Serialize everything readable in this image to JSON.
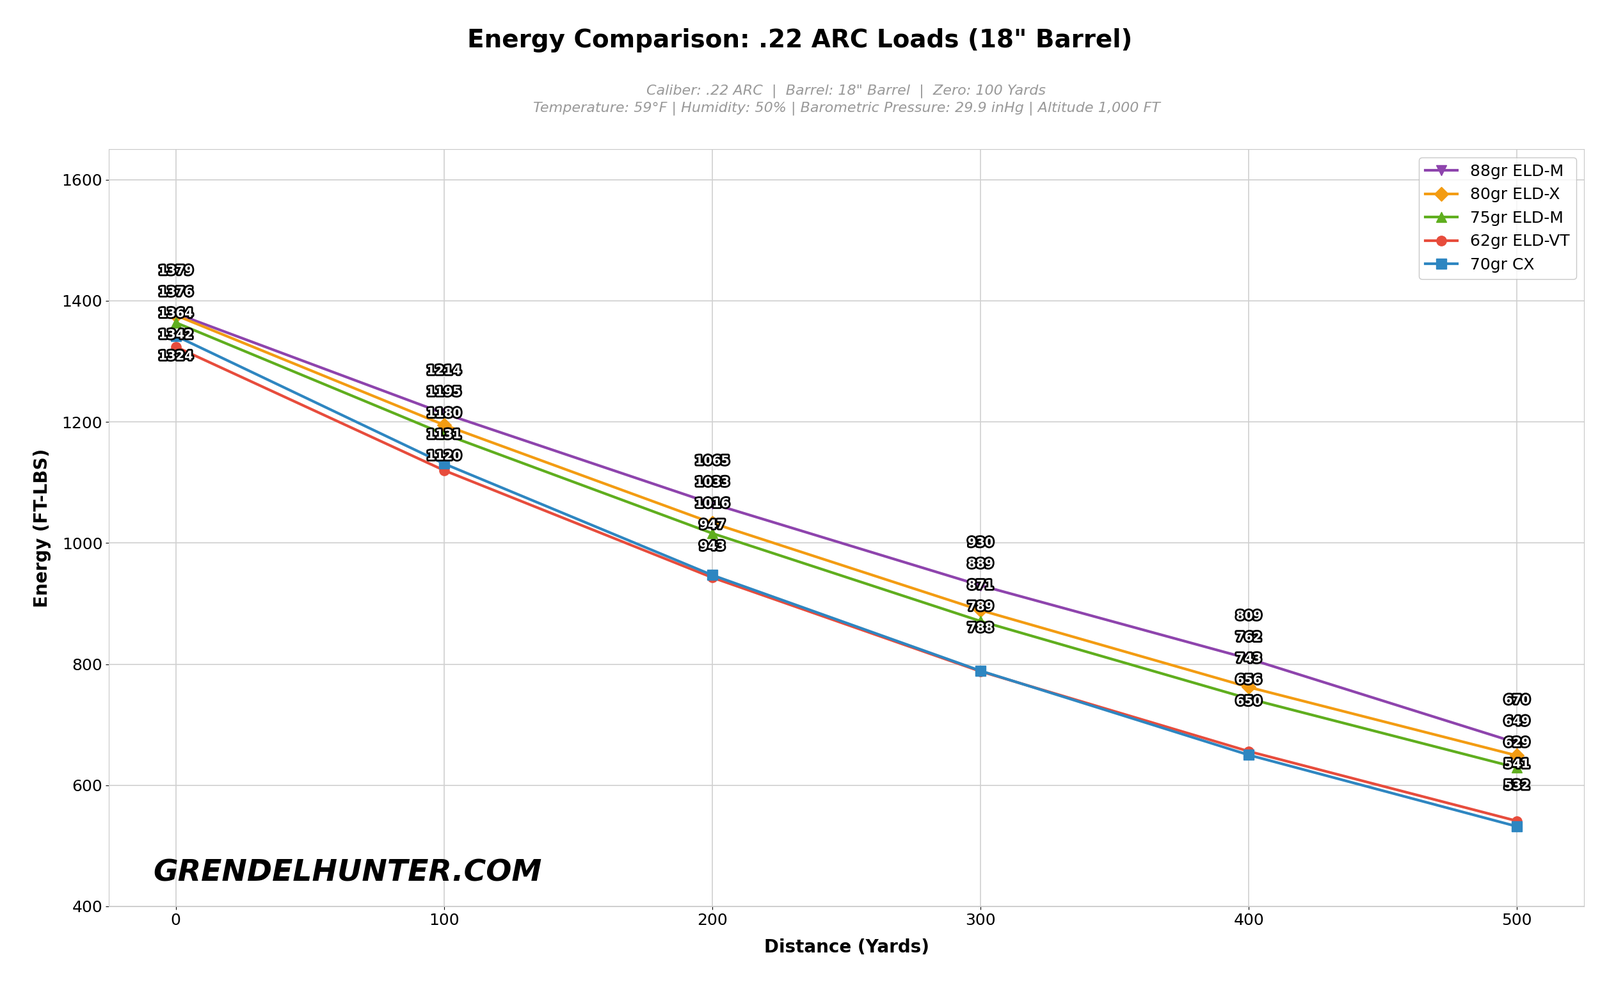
{
  "chart_data": {
    "type": "line",
    "title": "Energy Comparison: .22 ARC Loads (18\" Barrel)",
    "subtitle": [
      "Caliber: .22 ARC  |  Barrel: 18\" Barrel  |  Zero: 100 Yards",
      "Temperature: 59°F | Humidity: 50% | Barometric Pressure: 29.9 inHg | Altitude 1,000 FT"
    ],
    "watermark": "GRENDELHUNTER.COM",
    "x_label": "Distance (Yards)",
    "y_label": "Energy (FT-LBS)",
    "x": [
      0,
      100,
      200,
      300,
      400,
      500
    ],
    "series": [
      {
        "name": "88gr ELD-M",
        "color": "#8e44ad",
        "marker": "triangle_down",
        "values": [
          1379,
          1214,
          1065,
          930,
          809,
          670
        ]
      },
      {
        "name": "80gr ELD-X",
        "color": "#f39c12",
        "marker": "diamond",
        "values": [
          1376,
          1195,
          1033,
          889,
          762,
          649
        ]
      },
      {
        "name": "75gr ELD-M",
        "color": "#5fae1e",
        "marker": "triangle_up",
        "values": [
          1364,
          1180,
          1016,
          871,
          743,
          629
        ]
      },
      {
        "name": "62gr ELD-VT",
        "color": "#e74c3c",
        "marker": "circle",
        "values": [
          1324,
          1120,
          943,
          788,
          656,
          541
        ]
      },
      {
        "name": "70gr CX",
        "color": "#2e86c1",
        "marker": "square",
        "values": [
          1342,
          1131,
          947,
          789,
          650,
          532
        ]
      }
    ],
    "xlim": [
      -25,
      525
    ],
    "ylim": [
      400,
      1650
    ],
    "xticks": [
      0,
      100,
      200,
      300,
      400,
      500
    ],
    "yticks": [
      400,
      600,
      800,
      1000,
      1200,
      1400,
      1600
    ],
    "grid": true,
    "legend": "upper right",
    "data_labels": true
  }
}
